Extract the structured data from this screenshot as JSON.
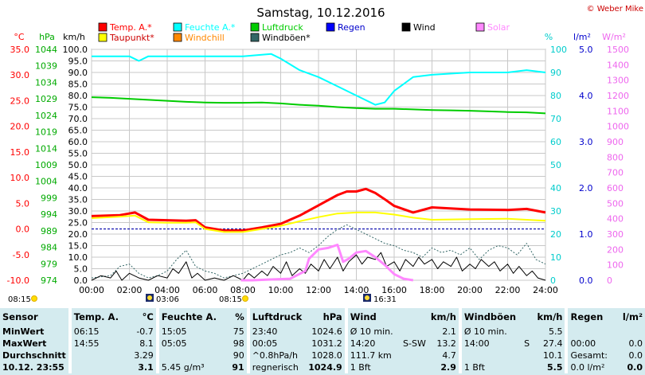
{
  "chart_data": {
    "type": "line",
    "title": "Samstag, 10.12.2016",
    "credit": "© Weber Mike",
    "x_ticks": [
      "00:00",
      "02:00",
      "04:00",
      "06:00",
      "08:00",
      "10:00",
      "12:00",
      "14:00",
      "16:00",
      "18:00",
      "20:00",
      "22:00",
      "24:00"
    ],
    "axes": {
      "temperature": {
        "unit": "°C",
        "range": [
          -10,
          35
        ],
        "color": "#ff0000",
        "ticks": [
          "35.0",
          "30.0",
          "25.0",
          "20.0",
          "15.0",
          "10.0",
          "5.0",
          "0.0",
          "-5.0",
          "-10.0"
        ]
      },
      "pressure": {
        "unit": "hPa",
        "range": [
          974,
          1044
        ],
        "color": "#00bb00",
        "ticks": [
          "1044",
          "1039",
          "1034",
          "1029",
          "1024",
          "1019",
          "1014",
          "1009",
          "1004",
          "999",
          "994",
          "989",
          "984",
          "979",
          "974"
        ]
      },
      "wind": {
        "unit": "km/h",
        "range": [
          0,
          100
        ],
        "color": "#000000",
        "ticks": [
          "100.0",
          "95.0",
          "90.0",
          "85.0",
          "80.0",
          "75.0",
          "70.0",
          "65.0",
          "60.0",
          "55.0",
          "50.0",
          "45.0",
          "40.0",
          "35.0",
          "30.0",
          "25.0",
          "20.0",
          "15.0",
          "10.0",
          "5.0",
          "0.0"
        ]
      },
      "humidity": {
        "unit": "%",
        "range": [
          0,
          100
        ],
        "color": "#00cccc",
        "ticks": [
          "100",
          "90",
          "80",
          "70",
          "60",
          "50",
          "40",
          "30",
          "20",
          "10",
          "0"
        ]
      },
      "rain": {
        "unit": "l/m²",
        "range": [
          0,
          5
        ],
        "color": "#0000cc",
        "ticks": [
          "5.0",
          "4.0",
          "3.0",
          "2.0",
          "1.0",
          "0.0"
        ]
      },
      "solar": {
        "unit": "W/m²",
        "range": [
          0,
          1500
        ],
        "color": "#ee66ee",
        "ticks": [
          "1500",
          "1400",
          "1300",
          "1200",
          "1100",
          "1000",
          "900",
          "800",
          "700",
          "600",
          "500",
          "400",
          "300",
          "200",
          "100",
          "0"
        ]
      }
    },
    "legend": [
      {
        "name": "Temp. A.*",
        "color": "#ff0000"
      },
      {
        "name": "Feuchte A.*",
        "color": "#00ffff"
      },
      {
        "name": "Luftdruck",
        "color": "#00cc00"
      },
      {
        "name": "Regen",
        "color": "#0000ff"
      },
      {
        "name": "Wind",
        "color": "#000000"
      },
      {
        "name": "Solar",
        "color": "#ff88ff"
      },
      {
        "name": "Taupunkt*",
        "color": "#ffff00"
      },
      {
        "name": "Windchill",
        "color": "#ff8800"
      },
      {
        "name": "Windböen*",
        "color": "#336666"
      }
    ],
    "series": [
      {
        "name": "Temp. A.*",
        "axis": "temperature",
        "color": "#ff0000",
        "width": 3,
        "x": [
          0,
          1.5,
          2.3,
          3,
          4,
          5,
          5.5,
          6,
          7,
          8,
          9,
          10,
          11,
          12,
          13,
          13.5,
          14,
          14.5,
          15,
          15.5,
          16,
          17,
          18,
          20,
          22,
          23,
          24
        ],
        "values": [
          2.5,
          2.7,
          3.2,
          1.8,
          1.7,
          1.6,
          1.7,
          0.3,
          -0.3,
          -0.3,
          0.3,
          1.0,
          2.6,
          4.6,
          6.6,
          7.3,
          7.3,
          7.8,
          7.0,
          5.8,
          4.5,
          3.2,
          4.2,
          3.8,
          3.7,
          3.9,
          3.2
        ]
      },
      {
        "name": "Taupunkt*",
        "axis": "temperature",
        "color": "#ffff00",
        "width": 2,
        "x": [
          0,
          1.5,
          2.3,
          3,
          4,
          5,
          5.5,
          6,
          7,
          8,
          9,
          10,
          11,
          12,
          13,
          14,
          15,
          16,
          17,
          18,
          20,
          22,
          24
        ],
        "values": [
          2.1,
          2.4,
          2.6,
          1.3,
          1.2,
          1.2,
          1.3,
          0.0,
          -0.6,
          -0.6,
          0.0,
          0.6,
          1.5,
          2.3,
          3.0,
          3.2,
          3.2,
          2.8,
          2.2,
          1.8,
          1.9,
          2.0,
          1.6
        ]
      },
      {
        "name": "Feuchte A.*",
        "axis": "humidity",
        "color": "#00ffff",
        "width": 2,
        "x": [
          0,
          2,
          2.5,
          3,
          4,
          6,
          8,
          9.5,
          10,
          11,
          12,
          13,
          14,
          15,
          15.5,
          16,
          17,
          18,
          20,
          22,
          23,
          24
        ],
        "values": [
          97,
          97,
          95,
          97,
          97,
          97,
          97,
          98,
          96,
          91,
          88,
          84,
          80,
          76,
          77,
          82,
          88,
          89,
          90,
          90,
          91,
          90
        ]
      },
      {
        "name": "Luftdruck",
        "axis": "pressure",
        "color": "#00cc00",
        "width": 2,
        "x": [
          0,
          1,
          2,
          3,
          4,
          5,
          6,
          7,
          8,
          9,
          10,
          11,
          12,
          13,
          14,
          15,
          16,
          17,
          18,
          19,
          20,
          21,
          22,
          23,
          24
        ],
        "values": [
          1029.5,
          1029.3,
          1029.0,
          1028.7,
          1028.4,
          1028.1,
          1027.9,
          1027.8,
          1027.8,
          1027.9,
          1027.6,
          1027.2,
          1026.9,
          1026.5,
          1026.2,
          1026.0,
          1026.0,
          1025.8,
          1025.6,
          1025.5,
          1025.4,
          1025.2,
          1025.0,
          1024.9,
          1024.6
        ]
      },
      {
        "name": "Windböen*",
        "axis": "wind",
        "color": "#336666",
        "width": 1,
        "dashed": true,
        "x": [
          0,
          1,
          1.5,
          2,
          2.5,
          3,
          3.5,
          4,
          4.5,
          5,
          5.5,
          6,
          6.5,
          7,
          7.5,
          8,
          8.5,
          9,
          9.5,
          10,
          10.5,
          11,
          11.5,
          12,
          12.5,
          13,
          13.5,
          14,
          14.5,
          15,
          15.5,
          16,
          16.5,
          17,
          17.5,
          18,
          18.5,
          19,
          19.5,
          20,
          20.5,
          21,
          21.5,
          22,
          22.5,
          23,
          23.5,
          24
        ],
        "values": [
          1,
          2,
          6,
          7,
          3,
          1,
          2,
          4,
          9,
          13,
          6,
          4,
          3,
          1,
          2,
          3,
          5,
          7,
          9,
          11,
          12,
          14,
          12,
          15,
          19,
          22,
          24,
          22,
          20,
          18,
          16,
          15,
          13,
          12,
          10,
          14,
          12,
          13,
          11,
          14,
          9,
          13,
          15,
          14,
          11,
          16,
          9,
          7
        ]
      },
      {
        "name": "Wind",
        "axis": "wind",
        "color": "#000000",
        "width": 1,
        "x": [
          0,
          0.5,
          1,
          1.3,
          1.6,
          2,
          2.5,
          3,
          3.5,
          4,
          4.3,
          4.6,
          5,
          5.3,
          5.6,
          6,
          6.5,
          7,
          7.5,
          8,
          8.3,
          8.6,
          9,
          9.3,
          9.6,
          10,
          10.3,
          10.6,
          11,
          11.3,
          11.6,
          12,
          12.3,
          12.6,
          13,
          13.3,
          13.6,
          14,
          14.3,
          14.6,
          15,
          15.3,
          15.6,
          16,
          16.3,
          16.6,
          17,
          17.3,
          17.6,
          18,
          18.3,
          18.6,
          19,
          19.3,
          19.6,
          20,
          20.3,
          20.6,
          21,
          21.3,
          21.6,
          22,
          22.3,
          22.6,
          23,
          23.3,
          23.6,
          24
        ],
        "values": [
          0,
          2,
          1,
          4,
          0,
          3,
          1,
          0,
          2,
          1,
          5,
          3,
          8,
          1,
          3,
          0,
          1,
          0,
          2,
          0,
          3,
          1,
          4,
          2,
          6,
          3,
          8,
          2,
          5,
          3,
          7,
          4,
          9,
          5,
          10,
          4,
          8,
          11,
          7,
          10,
          9,
          12,
          6,
          8,
          4,
          9,
          6,
          10,
          7,
          9,
          5,
          8,
          6,
          10,
          4,
          7,
          5,
          9,
          6,
          8,
          4,
          7,
          3,
          6,
          2,
          4,
          1,
          0
        ]
      },
      {
        "name": "Solar",
        "axis": "solar",
        "color": "#ff88ff",
        "width": 3,
        "x": [
          7.9,
          8.5,
          9.5,
          10.5,
          11.3,
          11.5,
          12,
          12.5,
          13,
          13.3,
          13.6,
          14,
          14.5,
          15,
          15.5,
          16,
          16.5,
          17
        ],
        "values": [
          0,
          0,
          5,
          10,
          60,
          140,
          200,
          210,
          230,
          120,
          140,
          180,
          190,
          150,
          100,
          40,
          10,
          0
        ]
      }
    ],
    "reference_line": {
      "axis": "temperature",
      "value": 0,
      "color": "#0000aa"
    },
    "bottom_markers": [
      {
        "label": "08:15",
        "symbol": "sun"
      },
      {
        "label": "03:06",
        "symbol": "moon-up"
      },
      {
        "label": "08:15",
        "symbol": "sun"
      },
      {
        "label": "16:31",
        "symbol": "moon-down"
      }
    ]
  },
  "stats": {
    "headers": {
      "sensor": "Sensor",
      "temp": "Temp. A.",
      "temp_unit": "°C",
      "hum": "Feuchte A.",
      "hum_unit": "%",
      "press": "Luftdruck",
      "press_unit": "hPa",
      "wind": "Wind",
      "wind_unit": "km/h",
      "gust": "Windböen",
      "gust_unit": "km/h",
      "rain": "Regen",
      "rain_unit": "l/m²"
    },
    "rows": [
      {
        "label": "MinWert",
        "t_time": "06:15",
        "t_val": "-0.7",
        "h_time": "15:05",
        "h_val": "75",
        "p_time": "23:40",
        "p_val": "1024.6",
        "w_label": "Ø 10 min.",
        "w_dir": "",
        "w_val": "2.1",
        "g_label": "Ø 10 min.",
        "g_dir": "",
        "g_val": "5.5",
        "r_label": "",
        "r_val": ""
      },
      {
        "label": "MaxWert",
        "t_time": "14:55",
        "t_val": "8.1",
        "h_time": "05:05",
        "h_val": "98",
        "p_time": "00:05",
        "p_val": "1031.2",
        "w_label": "14:20",
        "w_dir": "S-SW",
        "w_val": "13.2",
        "g_label": "14:00",
        "g_dir": "S",
        "g_val": "27.4",
        "r_label": "00:00",
        "r_val": "0.0"
      },
      {
        "label": "Durchschnitt",
        "t_time": "",
        "t_val": "3.29",
        "h_time": "",
        "h_val": "90",
        "p_time": "^0.8hPa/h",
        "p_val": "1028.0",
        "w_label": "111.7 km",
        "w_dir": "",
        "w_val": "4.7",
        "g_label": "",
        "g_dir": "",
        "g_val": "10.1",
        "r_label": "Gesamt:",
        "r_val": "0.0"
      },
      {
        "label": "10.12. 23:55",
        "t_time": "",
        "t_val": "3.1",
        "h_time": "5.45 g/m³",
        "h_val": "91",
        "p_time": "regnerisch",
        "p_val": "1024.9",
        "w_label": "1 Bft",
        "w_dir": "",
        "w_val": "2.9",
        "g_label": "1 Bft",
        "g_dir": "",
        "g_val": "5.5",
        "r_label": "0.0 l/m²",
        "r_val": "0.0"
      }
    ]
  }
}
